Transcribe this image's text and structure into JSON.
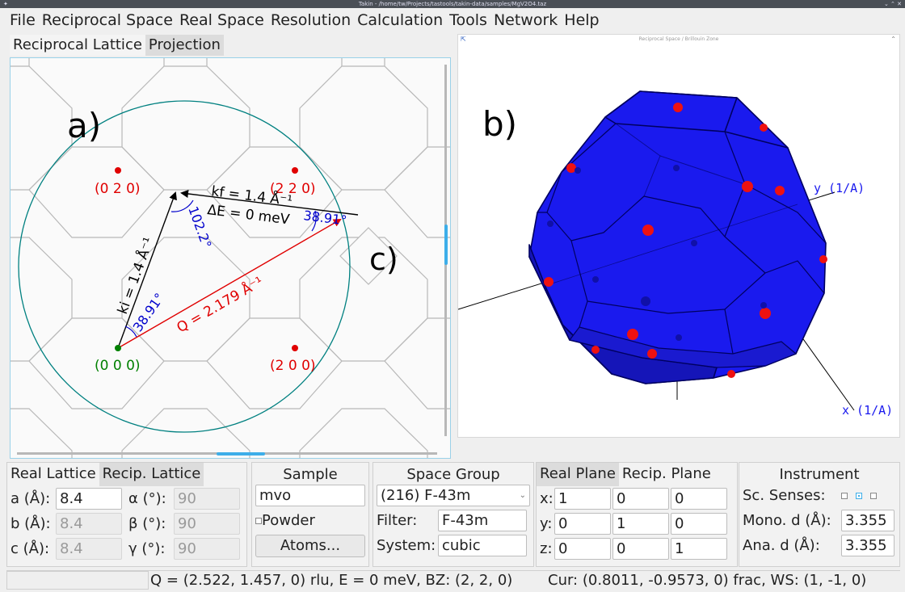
{
  "window": {
    "title": "Takin - /home/tw/Projects/tastools/takin-data/samples/MgV2O4.taz"
  },
  "menu": [
    "File",
    "Reciprocal Space",
    "Real Space",
    "Resolution",
    "Calculation",
    "Tools",
    "Network",
    "Help"
  ],
  "left_tabs": [
    "Reciprocal Lattice",
    "Projection"
  ],
  "scattering_plot": {
    "annotation": "a)",
    "annotation_c": "c)",
    "points": [
      {
        "label": "(0 2 0)",
        "color": "#e00000"
      },
      {
        "label": "(2 2 0)",
        "color": "#e00000"
      },
      {
        "label": "(0 0 0)",
        "color": "#008000"
      },
      {
        "label": "(2 0 0)",
        "color": "#e00000"
      }
    ],
    "vectors": {
      "kf": "kf = 1.4 Å⁻¹",
      "ki": "ki = 1.4 Å⁻¹",
      "q": "Q = 2.179 Å⁻¹",
      "de": "ΔE = 0 meV"
    },
    "angles": {
      "a1": "102.2°",
      "a2": "38.91°",
      "a3": "38.91°"
    },
    "colors": {
      "circle": "#008080",
      "q_vector": "#e00000",
      "angle": "#0000cc",
      "grid": "#b8b8b8"
    }
  },
  "bz_view": {
    "title": "Reciprocal Space / Brillouin Zone",
    "annotation": "b)",
    "axis_y": "y (1/A)",
    "axis_x": "x (1/A)",
    "colors": {
      "zone": "#1a1aee",
      "edge": "#000060",
      "point": "#ee1111",
      "axis_label": "#1a1aee"
    }
  },
  "lattice": {
    "tabs": [
      "Real Lattice",
      "Recip. Lattice"
    ],
    "a_label": "a (Å):",
    "a": "8.4",
    "b_label": "b (Å):",
    "b": "8.4",
    "c_label": "c (Å):",
    "c": "8.4",
    "alpha_label": "α (°):",
    "alpha": "90",
    "beta_label": "β (°):",
    "beta": "90",
    "gamma_label": "γ (°):",
    "gamma": "90"
  },
  "sample": {
    "title": "Sample",
    "name": "mvo",
    "powder_label": "Powder",
    "atoms_button": "Atoms..."
  },
  "space_group": {
    "title": "Space Group",
    "selected": "(216) F-43m",
    "filter_label": "Filter:",
    "filter": "F-43m",
    "system_label": "System:",
    "system": "cubic"
  },
  "plane": {
    "tabs": [
      "Real Plane",
      "Recip. Plane"
    ],
    "x_label": "x:",
    "x": [
      "1",
      "0",
      "0"
    ],
    "y_label": "y:",
    "y": [
      "0",
      "1",
      "0"
    ],
    "z_label": "z:",
    "z": [
      "0",
      "0",
      "1"
    ]
  },
  "instrument": {
    "title": "Instrument",
    "senses_label": "Sc. Senses:",
    "mono_label": "Mono. d (Å):",
    "mono": "3.355",
    "ana_label": "Ana. d (Å):",
    "ana": "3.355"
  },
  "status": {
    "left": "Q = (2.522, 1.457, 0) rlu, E = 0 meV, BZ: (2, 2, 0)",
    "right": "Cur: (0.8011, -0.9573, 0) frac, WS: (1, -1, 0)"
  }
}
